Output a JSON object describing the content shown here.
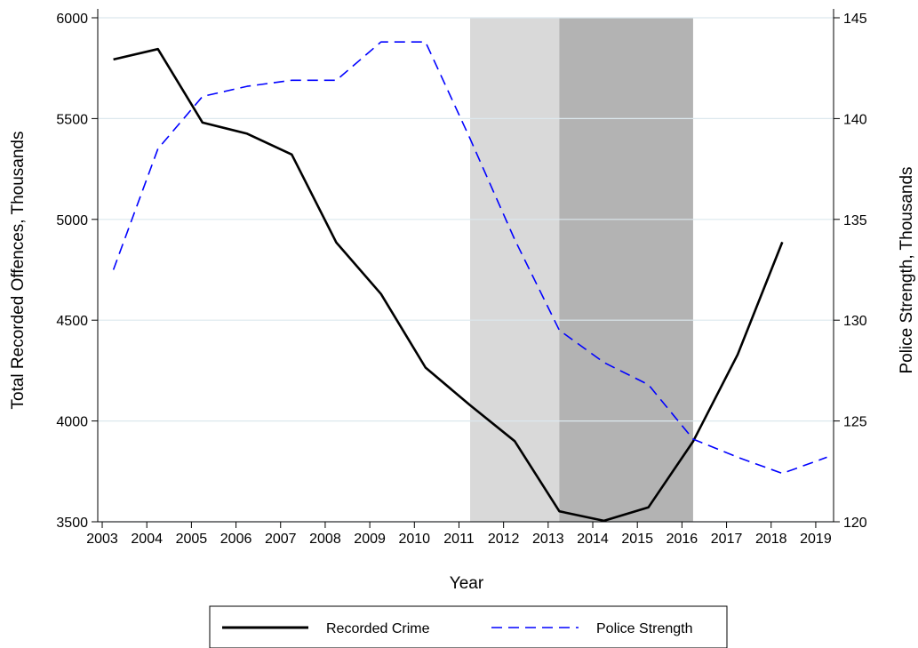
{
  "chart_data": {
    "type": "line",
    "xlabel": "Year",
    "ylabel_left": "Total Recorded Offences, Thousands",
    "ylabel_right": "Police Strength, Thousands",
    "x_ticks": [
      2003,
      2004,
      2005,
      2006,
      2007,
      2008,
      2009,
      2010,
      2011,
      2012,
      2013,
      2014,
      2015,
      2016,
      2017,
      2018,
      2019
    ],
    "y_left_ticks": [
      3500,
      4000,
      4500,
      5000,
      5500,
      6000
    ],
    "y_right_ticks": [
      120,
      125,
      130,
      135,
      140,
      145
    ],
    "xlim": [
      2002.9,
      2019.4
    ],
    "y_left_lim": [
      3500,
      6000
    ],
    "y_right_lim": [
      120,
      145
    ],
    "grid": true,
    "shaded_regions": [
      {
        "x_start": 2011.25,
        "x_end": 2013.25,
        "color": "#d9d9d9"
      },
      {
        "x_start": 2013.25,
        "x_end": 2016.25,
        "color": "#b3b3b3"
      }
    ],
    "series": [
      {
        "name": "Recorded Crime",
        "axis": "left",
        "color": "#000000",
        "style": "solid",
        "x": [
          2003.25,
          2004.25,
          2005.25,
          2006.25,
          2007.25,
          2008.25,
          2009.25,
          2010.25,
          2011.25,
          2012.25,
          2013.25,
          2014.25,
          2015.25,
          2016.25,
          2017.25,
          2018.25
        ],
        "values": [
          5793,
          5845,
          5480,
          5425,
          5322,
          4885,
          4630,
          4265,
          4078,
          3900,
          3552,
          3505,
          3572,
          3898,
          4330,
          4887
        ]
      },
      {
        "name": "Police Strength",
        "axis": "right",
        "color": "#0000ff",
        "style": "dashed",
        "x": [
          2003.25,
          2004.25,
          2005.25,
          2006.25,
          2007.25,
          2008.25,
          2009.25,
          2010.25,
          2011.25,
          2012.25,
          2013.25,
          2014.25,
          2015.25,
          2016.25,
          2017.25,
          2018.25,
          2019.25
        ],
        "values": [
          132.5,
          138.5,
          141.1,
          141.6,
          141.9,
          141.9,
          143.8,
          143.8,
          139.0,
          134.0,
          129.5,
          127.9,
          126.8,
          124.1,
          123.2,
          122.4,
          123.2
        ]
      }
    ],
    "legend": {
      "placement": "bottom-center",
      "entries": [
        "Recorded Crime",
        "Police Strength"
      ]
    }
  }
}
